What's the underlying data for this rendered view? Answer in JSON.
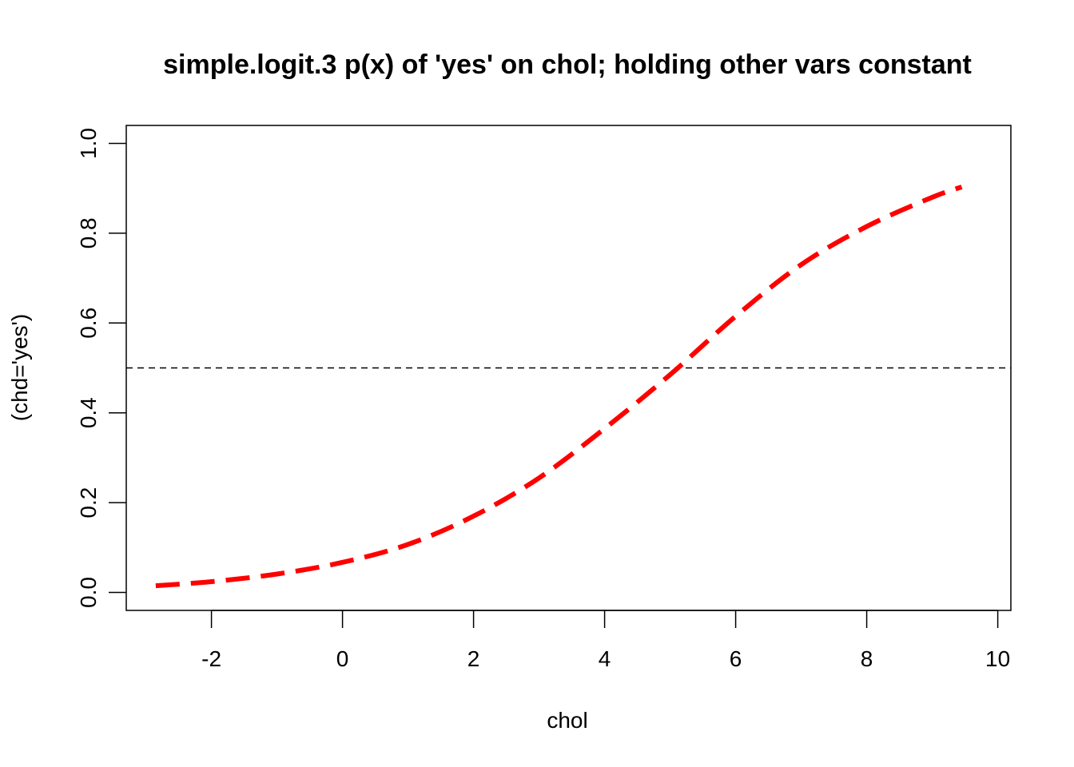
{
  "chart_data": {
    "type": "line",
    "title": "simple.logit.3 p(x) of 'yes' on chol; holding other vars constant",
    "xlabel": "chol",
    "ylabel": "(chd='yes')",
    "xlim": [
      -3.3,
      10.2
    ],
    "ylim": [
      -0.04,
      1.04
    ],
    "x_ticks": [
      -2,
      0,
      2,
      4,
      6,
      8,
      10
    ],
    "x_tick_labels": [
      "-2",
      "0",
      "2",
      "4",
      "6",
      "8",
      "10"
    ],
    "y_ticks": [
      0.0,
      0.2,
      0.4,
      0.6,
      0.8,
      1.0
    ],
    "y_tick_labels": [
      "0.0",
      "0.2",
      "0.4",
      "0.6",
      "0.8",
      "1.0"
    ],
    "grid": false,
    "legend": "none",
    "reference_line": {
      "y": 0.5,
      "style": "dashed",
      "color": "#000000"
    },
    "series": [
      {
        "color": "#ff0000",
        "style": "dashed",
        "x": [
          -2.85,
          -2.0,
          -1.0,
          0.0,
          1.0,
          2.0,
          3.0,
          4.0,
          5.0,
          6.0,
          7.0,
          8.0,
          9.0,
          9.45
        ],
        "y": [
          0.015,
          0.024,
          0.041,
          0.067,
          0.107,
          0.17,
          0.255,
          0.365,
          0.485,
          0.615,
          0.73,
          0.815,
          0.88,
          0.903
        ]
      }
    ]
  },
  "colors": {
    "series": "#ff0000",
    "axis": "#000000",
    "background": "#ffffff"
  }
}
